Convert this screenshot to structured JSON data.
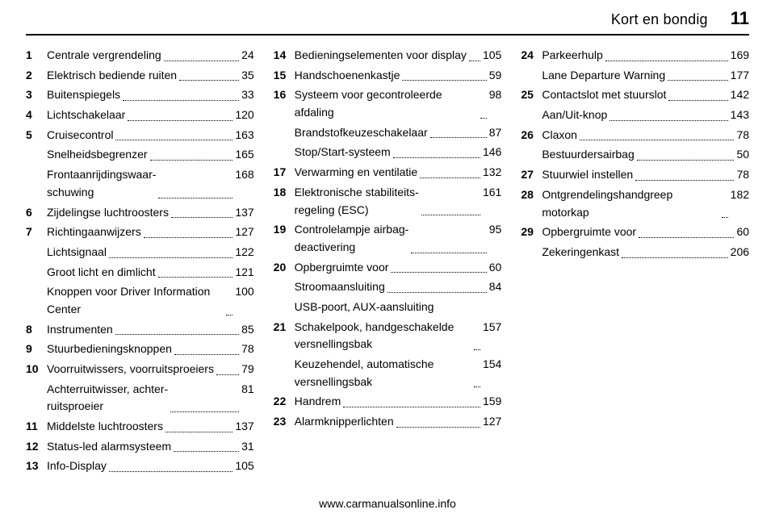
{
  "header": {
    "chapter": "Kort en bondig",
    "page_number": "11"
  },
  "columns": [
    {
      "entries": [
        {
          "num": "1",
          "label": "Centrale vergrendeling",
          "page": "24"
        },
        {
          "num": "2",
          "label": "Elektrisch bediende ruiten",
          "page": "35"
        },
        {
          "num": "3",
          "label": "Buitenspiegels",
          "page": "33"
        },
        {
          "num": "4",
          "label": "Lichtschakelaar",
          "page": "120"
        },
        {
          "num": "5",
          "label": "Cruisecontrol",
          "page": "163"
        },
        {
          "num": "",
          "label": "Snelheidsbegrenzer",
          "page": "165"
        },
        {
          "num": "",
          "label": "Frontaanrijdingswaar-\nschuwing",
          "page": "168"
        },
        {
          "num": "6",
          "label": "Zijdelingse luchtroosters",
          "page": "137"
        },
        {
          "num": "7",
          "label": "Richtingaanwijzers",
          "page": "127"
        },
        {
          "num": "",
          "label": "Lichtsignaal",
          "page": "122"
        },
        {
          "num": "",
          "label": "Groot licht en dimlicht",
          "page": "121"
        },
        {
          "num": "",
          "label": "Knoppen voor Driver Information Center",
          "page": "100"
        },
        {
          "num": "8",
          "label": "Instrumenten",
          "page": "85"
        },
        {
          "num": "9",
          "label": "Stuurbedieningsknoppen",
          "page": "78"
        },
        {
          "num": "10",
          "label": "Voorruitwissers, voorruitsproeiers",
          "page": "79"
        },
        {
          "num": "",
          "label": "Achterruitwisser, achter-\nruitsproeier",
          "page": "81"
        },
        {
          "num": "11",
          "label": "Middelste luchtroosters",
          "page": "137"
        },
        {
          "num": "12",
          "label": "Status-led alarmsysteem",
          "page": "31"
        },
        {
          "num": "13",
          "label": "Info-Display",
          "page": "105"
        }
      ]
    },
    {
      "entries": [
        {
          "num": "14",
          "label": "Bedieningselementen voor display",
          "page": "105"
        },
        {
          "num": "15",
          "label": "Handschoenenkastje",
          "page": "59"
        },
        {
          "num": "16",
          "label": "Systeem voor gecontroleerde afdaling",
          "page": "98"
        },
        {
          "num": "",
          "label": "Brandstofkeuzeschakelaar",
          "page": "87"
        },
        {
          "num": "",
          "label": "Stop/Start-systeem",
          "page": "146"
        },
        {
          "num": "17",
          "label": "Verwarming en ventilatie",
          "page": "132"
        },
        {
          "num": "18",
          "label": "Elektronische stabiliteits-\nregeling (ESC)",
          "page": "161"
        },
        {
          "num": "19",
          "label": "Controlelampje airbag-\ndeactivering",
          "page": "95"
        },
        {
          "num": "20",
          "label": "Opbergruimte voor",
          "page": "60"
        },
        {
          "num": "",
          "label": "Stroomaansluiting",
          "page": "84"
        },
        {
          "num": "",
          "label": "USB-poort, AUX-aansluiting",
          "page": ""
        },
        {
          "num": "21",
          "label": "Schakelpook, handgeschakelde versnellingsbak",
          "page": "157"
        },
        {
          "num": "",
          "label": "Keuzehendel, automatische versnellingsbak",
          "page": "154"
        },
        {
          "num": "22",
          "label": "Handrem",
          "page": "159"
        },
        {
          "num": "23",
          "label": "Alarmknipperlichten",
          "page": "127"
        }
      ]
    },
    {
      "entries": [
        {
          "num": "24",
          "label": "Parkeerhulp",
          "page": "169"
        },
        {
          "num": "",
          "label": "Lane Departure Warning",
          "page": "177"
        },
        {
          "num": "25",
          "label": "Contactslot met stuurslot",
          "page": "142"
        },
        {
          "num": "",
          "label": "Aan/Uit-knop",
          "page": "143"
        },
        {
          "num": "26",
          "label": "Claxon",
          "page": "78"
        },
        {
          "num": "",
          "label": "Bestuurdersairbag",
          "page": "50"
        },
        {
          "num": "27",
          "label": "Stuurwiel instellen",
          "page": "78"
        },
        {
          "num": "28",
          "label": "Ontgrendelingshandgreep motorkap",
          "page": "182"
        },
        {
          "num": "29",
          "label": "Opbergruimte voor",
          "page": "60"
        },
        {
          "num": "",
          "label": "Zekeringenkast",
          "page": "206"
        }
      ]
    }
  ],
  "footer": {
    "site": "www.carmanualsonline.info"
  }
}
